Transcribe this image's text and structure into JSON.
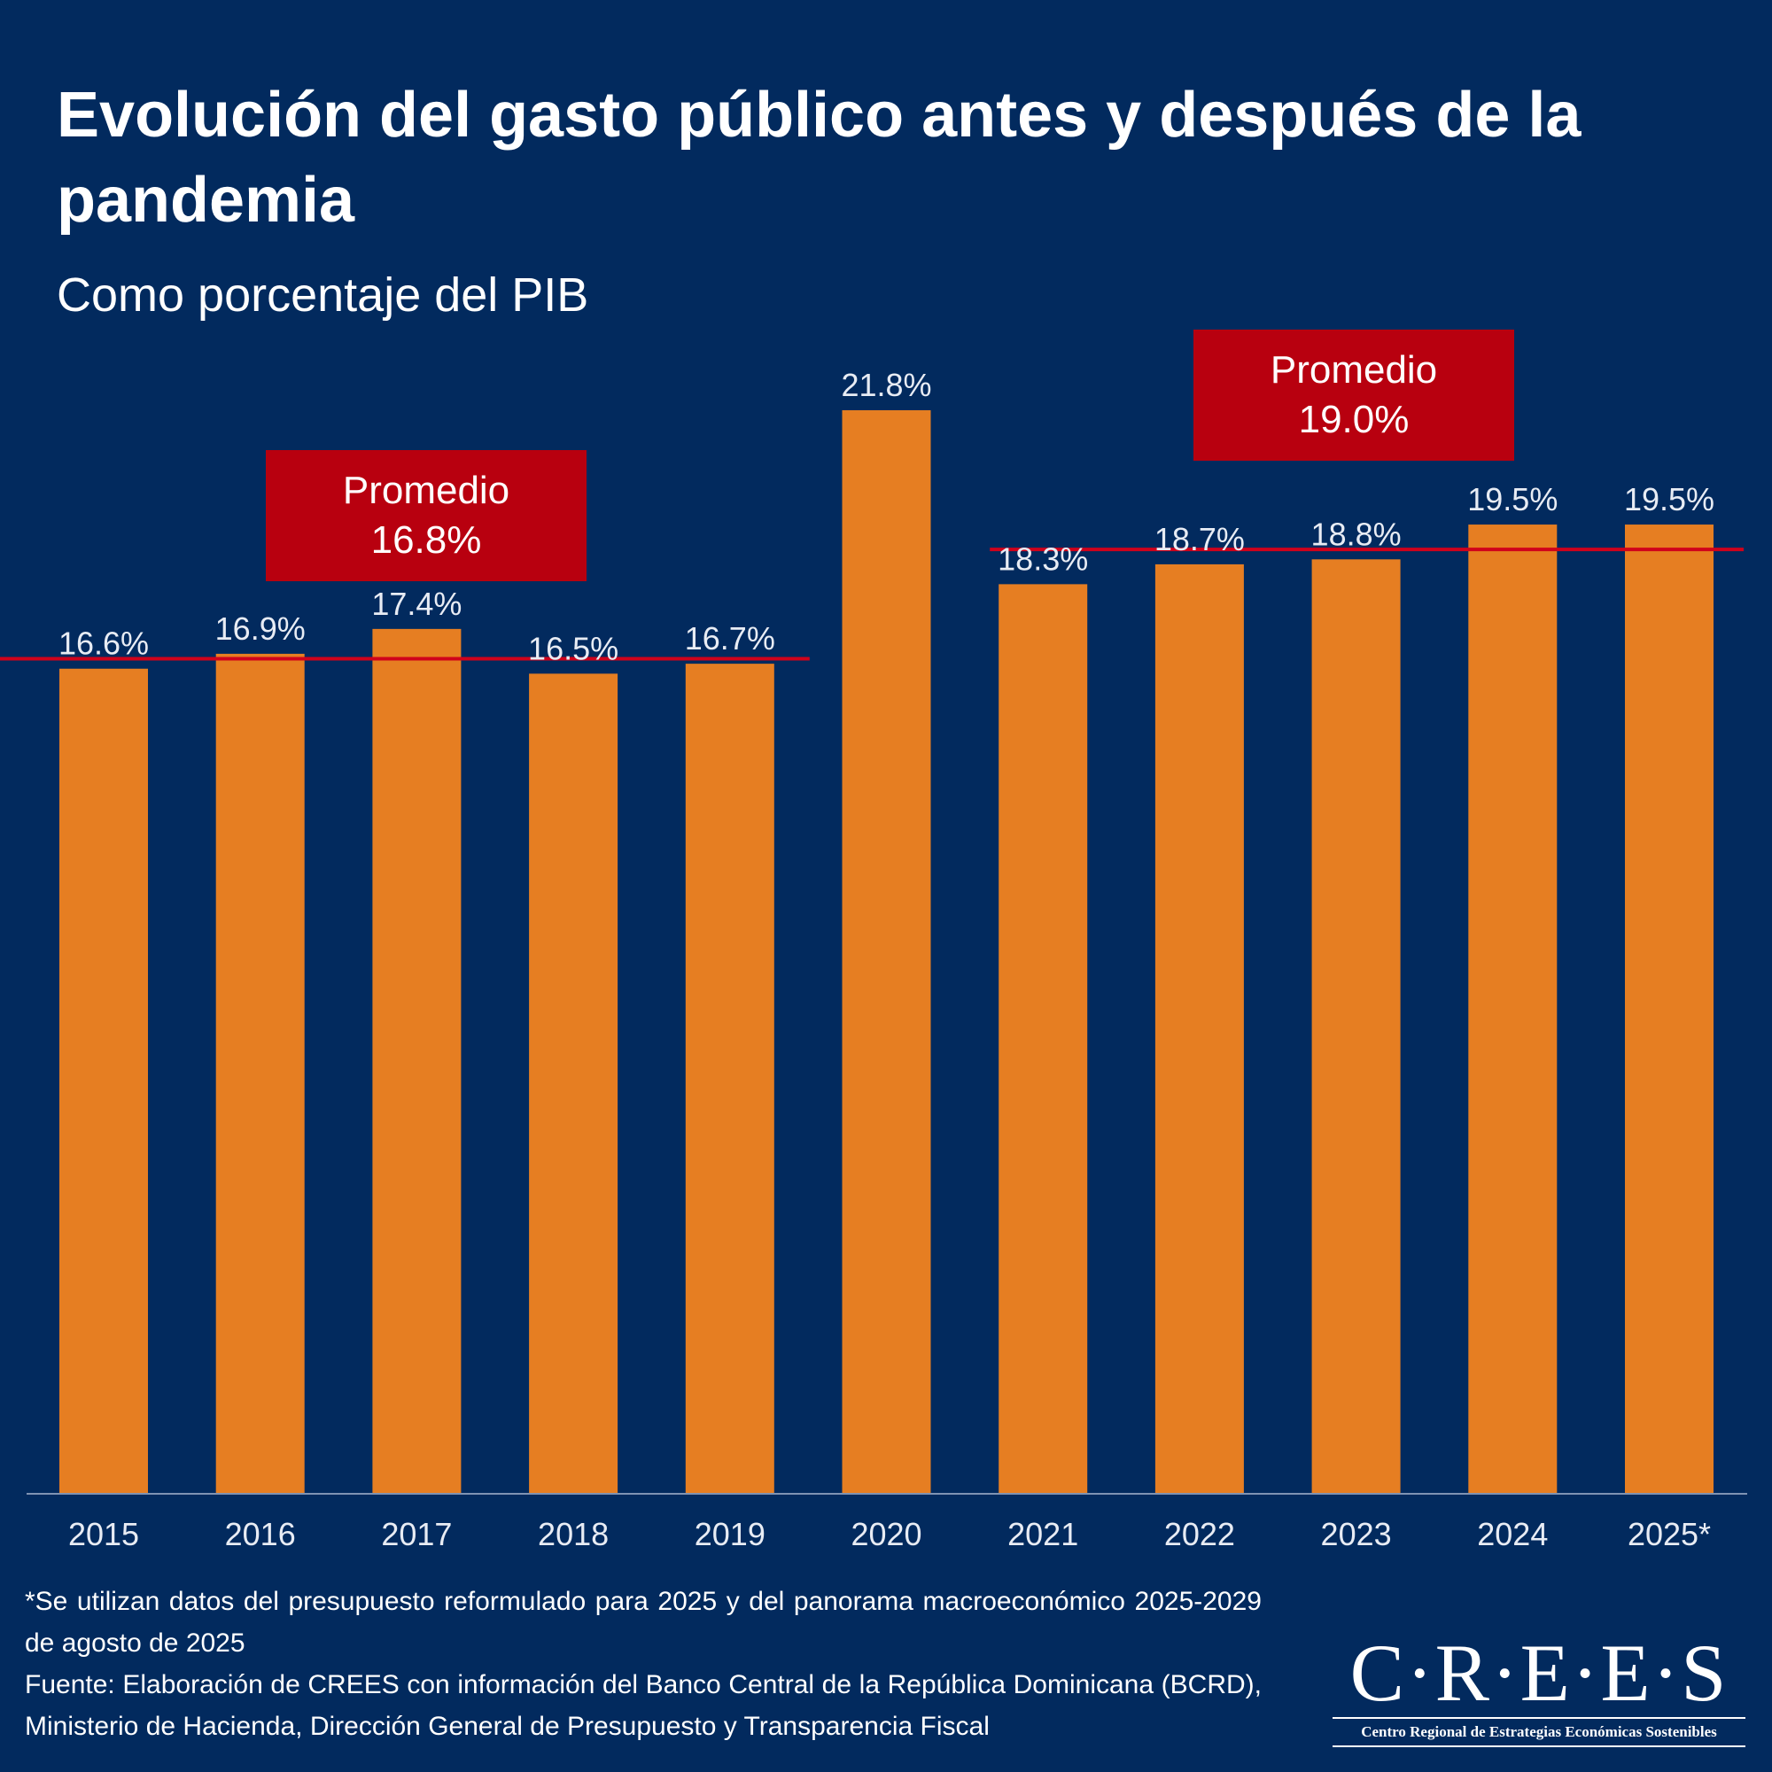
{
  "title": "Evolución del gasto público antes y después de la pandemia",
  "subtitle": "Como porcentaje del PIB",
  "colors": {
    "background": "#022a5e",
    "bar": "#e67e22",
    "average_line": "#d0021b",
    "average_box": "#b8000f",
    "text": "#ffffff"
  },
  "averages": {
    "pre": {
      "label": "Promedio",
      "value_label": "16.8%",
      "value": 16.8,
      "from": "2015",
      "to": "2019"
    },
    "post": {
      "label": "Promedio",
      "value_label": "19.0%",
      "value": 19.0,
      "from": "2021",
      "to": "2025*"
    }
  },
  "chart_data": {
    "type": "bar",
    "categories": [
      "2015",
      "2016",
      "2017",
      "2018",
      "2019",
      "2020",
      "2021",
      "2022",
      "2023",
      "2024",
      "2025*"
    ],
    "values": [
      16.6,
      16.9,
      17.4,
      16.5,
      16.7,
      21.8,
      18.3,
      18.7,
      18.8,
      19.5,
      19.5
    ],
    "data_labels": [
      "16.6%",
      "16.9%",
      "17.4%",
      "16.5%",
      "16.7%",
      "21.8%",
      "18.3%",
      "18.7%",
      "18.8%",
      "19.5%",
      "19.5%"
    ],
    "title": "Evolución del gasto público antes y después de la pandemia",
    "subtitle": "Como porcentaje del PIB",
    "xlabel": "",
    "ylabel": "",
    "ylim": [
      0,
      22
    ],
    "grid": false,
    "legend": "none"
  },
  "footnote": {
    "note": "*Se utilizan datos del presupuesto reformulado para 2025 y del panorama macroeconómico 2025-2029 de agosto de 2025",
    "source": "Fuente: Elaboración de CREES con información del Banco Central de la República Dominicana (BCRD), Ministerio de Hacienda, Dirección General de Presupuesto y Transparencia Fiscal"
  },
  "logo": {
    "wordmark": "C·R·E·E·S",
    "tagline": "Centro Regional de Estrategias Económicas Sostenibles"
  }
}
